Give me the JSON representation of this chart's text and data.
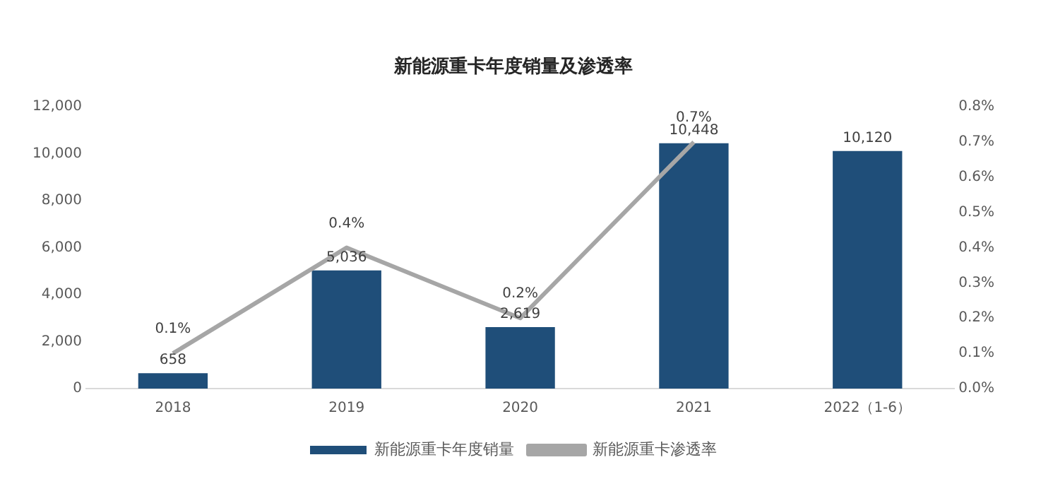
{
  "chart_data": {
    "type": "bar",
    "title": "新能源重卡年度销量及渗透率",
    "categories": [
      "2018",
      "2019",
      "2020",
      "2021",
      "2022（1-6）"
    ],
    "series": [
      {
        "name": "新能源重卡年度销量",
        "color": "#1f4e79",
        "values": [
          658,
          5036,
          2619,
          10448,
          10120
        ],
        "value_labels": [
          "658",
          "5,036",
          "2,619",
          "10,448",
          "10,120"
        ]
      },
      {
        "name": "新能源重卡渗透率",
        "type": "line",
        "axis": "y2",
        "color": "#a6a6a6",
        "values": [
          0.1,
          0.4,
          0.2,
          0.7,
          null
        ],
        "value_labels": [
          "0.1%",
          "0.4%",
          "0.2%",
          "0.7%",
          null
        ]
      }
    ],
    "ylim": [
      0,
      12000
    ],
    "yticks": [
      {
        "value": 0,
        "label": "0"
      },
      {
        "value": 2000,
        "label": "2,000"
      },
      {
        "value": 4000,
        "label": "4,000"
      },
      {
        "value": 6000,
        "label": "6,000"
      },
      {
        "value": 8000,
        "label": "8,000"
      },
      {
        "value": 10000,
        "label": "10,000"
      },
      {
        "value": 12000,
        "label": "12,000"
      }
    ],
    "y2lim": [
      0,
      0.8
    ],
    "y2ticks": [
      {
        "value": 0,
        "label": "0.0%"
      },
      {
        "value": 0.1,
        "label": "0.1%"
      },
      {
        "value": 0.2,
        "label": "0.2%"
      },
      {
        "value": 0.3,
        "label": "0.3%"
      },
      {
        "value": 0.4,
        "label": "0.4%"
      },
      {
        "value": 0.5,
        "label": "0.5%"
      },
      {
        "value": 0.6,
        "label": "0.6%"
      },
      {
        "value": 0.7,
        "label": "0.7%"
      },
      {
        "value": 0.8,
        "label": "0.8%"
      }
    ],
    "grid": false,
    "legend": "bottom",
    "marker": "none",
    "line_style": "solid"
  }
}
